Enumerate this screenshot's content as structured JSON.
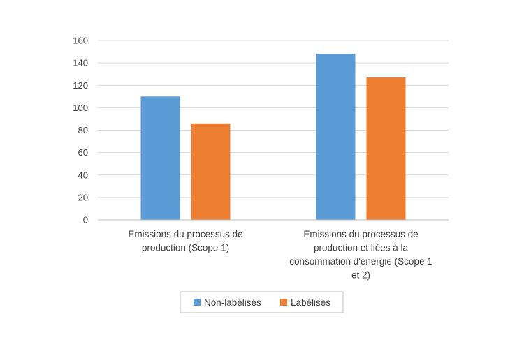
{
  "chart_data": {
    "type": "bar",
    "categories": [
      [
        "Emissions du processus de",
        "production (Scope 1)"
      ],
      [
        "Emissions du processus de",
        "production et liées à la",
        "consommation d'énergie (Scope 1",
        "et 2)"
      ]
    ],
    "series": [
      {
        "name": "Non-labélisés",
        "values": [
          110,
          148
        ],
        "color": "#5B9BD5"
      },
      {
        "name": "Labélisés",
        "values": [
          86,
          127
        ],
        "color": "#ED7D31"
      }
    ],
    "ylim": [
      0,
      160
    ],
    "yticks": [
      0,
      20,
      40,
      60,
      80,
      100,
      120,
      140,
      160
    ],
    "grid": true,
    "legend_position": "bottom"
  }
}
